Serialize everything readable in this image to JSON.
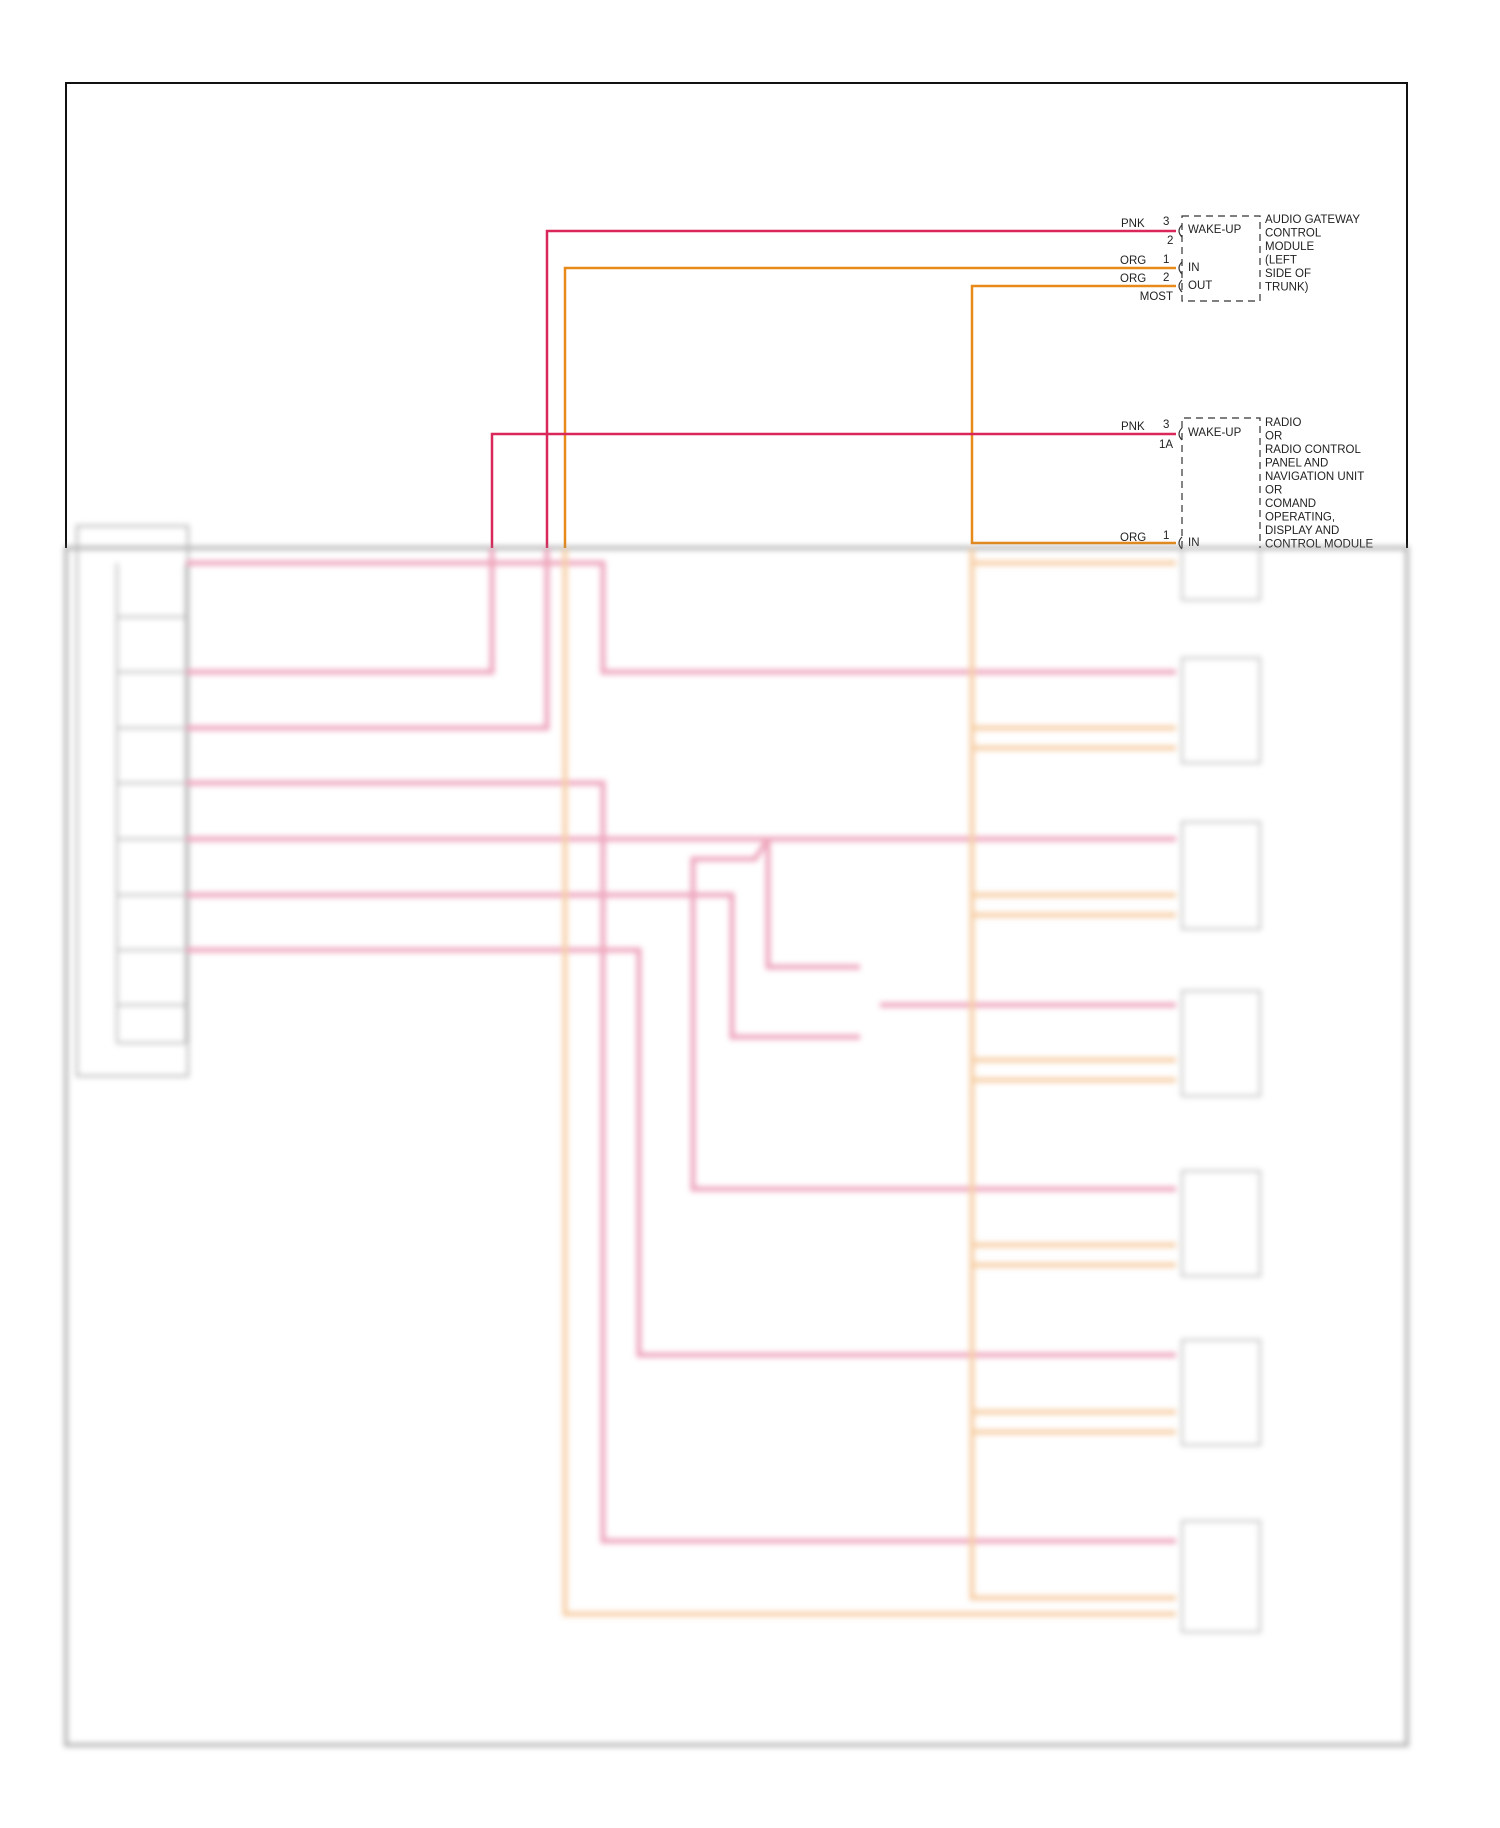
{
  "colors": {
    "pnk": "#d9275a",
    "org": "#e88a1a",
    "frame": "#111111"
  },
  "audio_gateway": {
    "name_lines": [
      "AUDIO GATEWAY",
      "CONTROL",
      "MODULE",
      "(LEFT",
      "SIDE OF",
      "TRUNK)"
    ],
    "pins": {
      "wakeup": {
        "color": "PNK",
        "pin": "3",
        "pin2": "2",
        "label": "WAKE-UP"
      },
      "in": {
        "color": "ORG",
        "pin": "1",
        "label": "IN"
      },
      "out": {
        "color": "ORG",
        "pin": "2",
        "label": "OUT"
      },
      "bus": "MOST"
    }
  },
  "radio": {
    "name_lines": [
      "RADIO",
      "OR",
      "RADIO CONTROL",
      "PANEL AND",
      "NAVIGATION UNIT",
      "OR",
      "COMAND",
      "OPERATING,",
      "DISPLAY AND",
      "CONTROL MODULE"
    ],
    "pins": {
      "wakeup": {
        "color": "PNK",
        "pin": "3",
        "pin2": "1A",
        "label": "WAKE-UP"
      },
      "in": {
        "color": "ORG",
        "pin": "1",
        "label": "IN"
      }
    }
  }
}
